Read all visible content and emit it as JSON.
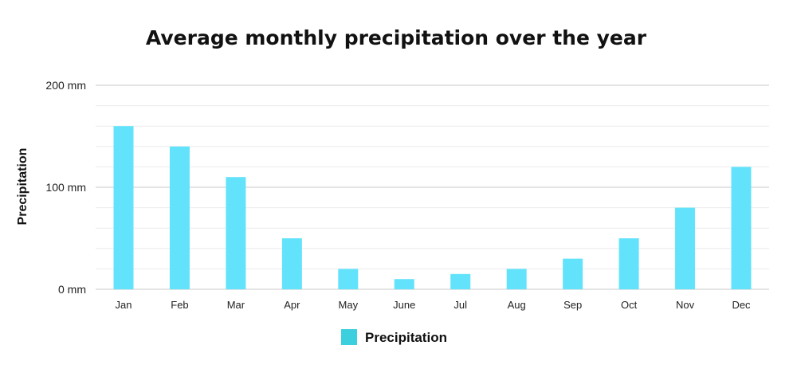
{
  "chart_data": {
    "type": "bar",
    "title": "Average monthly precipitation over the year",
    "xlabel": "",
    "ylabel": "Precipitation",
    "categories": [
      "Jan",
      "Feb",
      "Mar",
      "Apr",
      "May",
      "June",
      "Jul",
      "Aug",
      "Sep",
      "Oct",
      "Nov",
      "Dec"
    ],
    "series": [
      {
        "name": "Precipitation",
        "values": [
          160,
          140,
          110,
          50,
          20,
          10,
          15,
          20,
          30,
          50,
          80,
          120
        ]
      }
    ],
    "ylim": [
      0,
      200
    ],
    "y_ticks": [
      0,
      100,
      200
    ],
    "y_tick_labels": [
      "0 mm",
      "100 mm",
      "200 mm"
    ],
    "grid": true,
    "legend_position": "bottom-center",
    "colors": {
      "bar": "#62e3fb",
      "legend_swatch": "#3ccfde",
      "major_grid": "#c8c8c8",
      "minor_grid": "#ececec"
    }
  }
}
